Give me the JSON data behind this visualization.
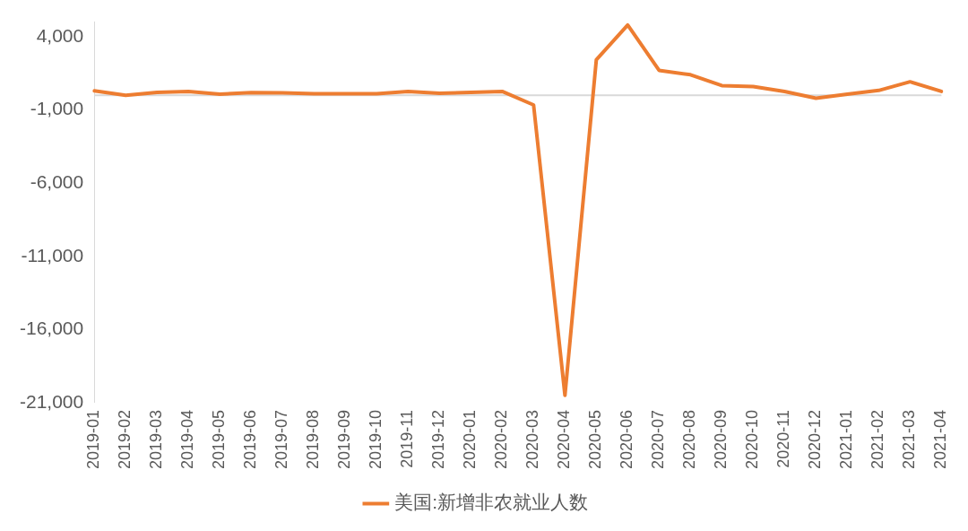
{
  "chart_data": {
    "type": "line",
    "categories": [
      "2019-01",
      "2019-02",
      "2019-03",
      "2019-04",
      "2019-05",
      "2019-06",
      "2019-07",
      "2019-08",
      "2019-09",
      "2019-10",
      "2019-11",
      "2019-12",
      "2020-01",
      "2020-02",
      "2020-03",
      "2020-04",
      "2020-05",
      "2020-06",
      "2020-07",
      "2020-08",
      "2020-09",
      "2020-10",
      "2020-11",
      "2020-12",
      "2021-01",
      "2021-02",
      "2021-03",
      "2021-04"
    ],
    "series": [
      {
        "name": "美国:新增非农就业人数",
        "color": "#ed7d31",
        "values": [
          300,
          0,
          200,
          260,
          70,
          180,
          160,
          100,
          100,
          100,
          260,
          130,
          200,
          260,
          -660,
          -20500,
          2430,
          4800,
          1700,
          1400,
          660,
          600,
          260,
          -200,
          70,
          330,
          920,
          260
        ]
      }
    ],
    "yticks": [
      {
        "value": 4000,
        "label": "4,000"
      },
      {
        "value": -1000,
        "label": "-1,000"
      },
      {
        "value": -6000,
        "label": "-6,000"
      },
      {
        "value": -11000,
        "label": "-11,000"
      },
      {
        "value": -16000,
        "label": "-16,000"
      },
      {
        "value": -21000,
        "label": "-21,000"
      }
    ],
    "ylim": [
      -21000,
      5000
    ],
    "ref_lines": [
      {
        "axis": "y",
        "value": 0,
        "color": "#d9d9d9"
      }
    ],
    "grid": false,
    "legend": "bottom",
    "marker": "none",
    "line_style": "solid"
  }
}
